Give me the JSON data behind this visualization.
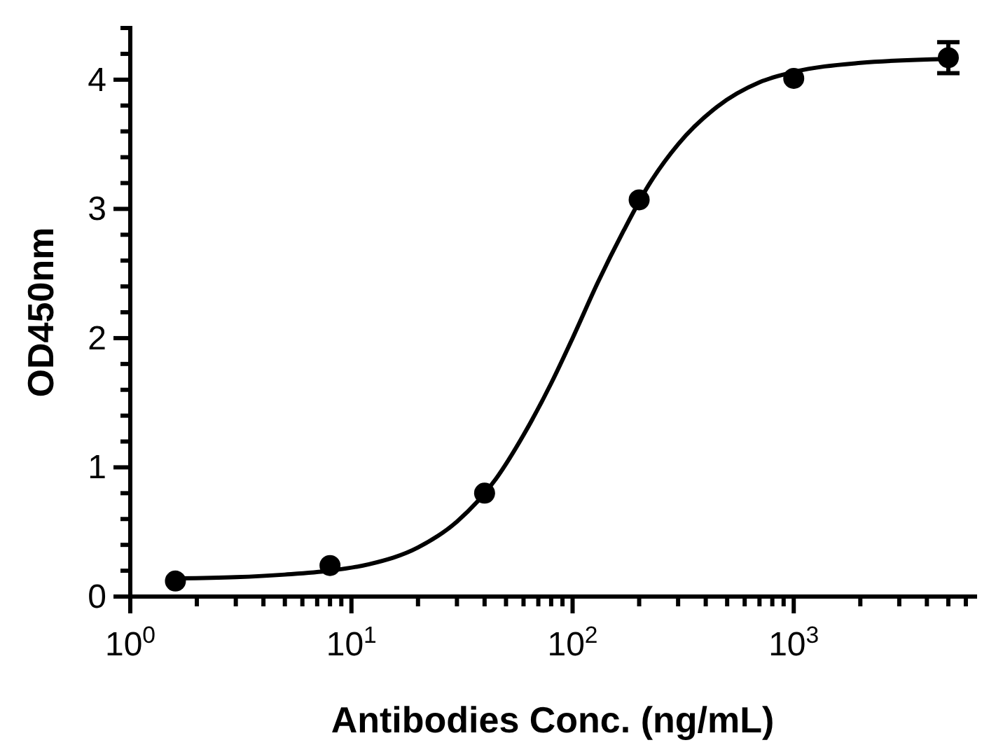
{
  "chart_data": {
    "type": "scatter",
    "xlabel": "Antibodies Conc. (ng/mL)",
    "ylabel": "OD450nm",
    "log": "x",
    "grid": false,
    "xlim": [
      1,
      6600
    ],
    "ylim": [
      0,
      4.4
    ],
    "xticks": [
      {
        "value": 1,
        "label": "10$^{0}$"
      },
      {
        "value": 2,
        "label": null
      },
      {
        "value": 3,
        "label": null
      },
      {
        "value": 4,
        "label": null
      },
      {
        "value": 5,
        "label": null
      },
      {
        "value": 6,
        "label": null
      },
      {
        "value": 7,
        "label": null
      },
      {
        "value": 8,
        "label": null
      },
      {
        "value": 9,
        "label": null
      },
      {
        "value": 10,
        "label": "10$^{1}$"
      },
      {
        "value": 20,
        "label": null
      },
      {
        "value": 30,
        "label": null
      },
      {
        "value": 40,
        "label": null
      },
      {
        "value": 50,
        "label": null
      },
      {
        "value": 60,
        "label": null
      },
      {
        "value": 70,
        "label": null
      },
      {
        "value": 80,
        "label": null
      },
      {
        "value": 90,
        "label": null
      },
      {
        "value": 100,
        "label": "10$^{2}$"
      },
      {
        "value": 200,
        "label": null
      },
      {
        "value": 300,
        "label": null
      },
      {
        "value": 400,
        "label": null
      },
      {
        "value": 500,
        "label": null
      },
      {
        "value": 600,
        "label": null
      },
      {
        "value": 700,
        "label": null
      },
      {
        "value": 800,
        "label": null
      },
      {
        "value": 900,
        "label": null
      },
      {
        "value": 1000,
        "label": "10$^{3}$"
      },
      {
        "value": 2000,
        "label": null
      },
      {
        "value": 3000,
        "label": null
      },
      {
        "value": 4000,
        "label": null
      },
      {
        "value": 5000,
        "label": null
      },
      {
        "value": 6000,
        "label": null
      }
    ],
    "yticks": [
      0,
      {
        "value": 0.2,
        "label": null
      },
      {
        "value": 0.4,
        "label": null
      },
      {
        "value": 0.6,
        "label": null
      },
      {
        "value": 0.8,
        "label": null
      },
      1,
      {
        "value": 1.2,
        "label": null
      },
      {
        "value": 1.4,
        "label": null
      },
      {
        "value": 1.6,
        "label": null
      },
      {
        "value": 1.8,
        "label": null
      },
      2,
      {
        "value": 2.2,
        "label": null
      },
      {
        "value": 2.4,
        "label": null
      },
      {
        "value": 2.6,
        "label": null
      },
      {
        "value": 2.8,
        "label": null
      },
      3,
      {
        "value": 3.2,
        "label": null
      },
      {
        "value": 3.4,
        "label": null
      },
      {
        "value": 3.6,
        "label": null
      },
      {
        "value": 3.8,
        "label": null
      },
      4,
      {
        "value": 4.2,
        "label": null
      },
      {
        "value": 4.4,
        "label": null
      }
    ],
    "series": [
      {
        "type": "line",
        "marker": "none",
        "line_style": "solid",
        "color": "#000000",
        "x": [
          1.5,
          3,
          5,
          8,
          12,
          20,
          30,
          45,
          60,
          80,
          100,
          130,
          170,
          220,
          300,
          450,
          700,
          1000,
          2000,
          5000
        ],
        "values": [
          0.14,
          0.15,
          0.17,
          0.2,
          0.25,
          0.38,
          0.58,
          0.91,
          1.25,
          1.65,
          2.0,
          2.43,
          2.83,
          3.18,
          3.5,
          3.79,
          3.98,
          4.06,
          4.13,
          4.16
        ]
      },
      {
        "marker": "circle",
        "color": "#000000",
        "x": [
          1.6,
          8,
          40,
          200,
          1000,
          5000
        ],
        "values": [
          0.12,
          0.24,
          0.8,
          3.07,
          4.01,
          4.17
        ],
        "errors": [
          null,
          null,
          null,
          null,
          null,
          0.12
        ]
      }
    ]
  }
}
